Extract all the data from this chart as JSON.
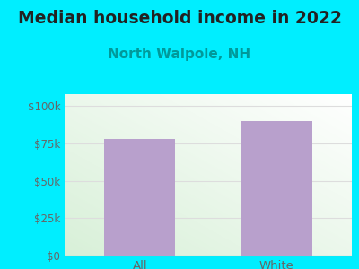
{
  "title": "Median household income in 2022",
  "subtitle": "North Walpole, NH",
  "categories": [
    "All",
    "White"
  ],
  "values": [
    78000,
    90000
  ],
  "bar_color": "#b8a0cc",
  "background_color": "#00eeff",
  "plot_bg_start": "#d8f0d8",
  "plot_bg_end": "#ffffff",
  "title_fontsize": 13.5,
  "title_color": "#222222",
  "subtitle_fontsize": 11,
  "subtitle_color": "#00999a",
  "tick_label_color": "#666666",
  "yticks": [
    0,
    25000,
    50000,
    75000,
    100000
  ],
  "ytick_labels": [
    "$0",
    "$25k",
    "$50k",
    "$75k",
    "$100k"
  ],
  "ylim": [
    0,
    108000
  ],
  "grid_color": "#dddddd",
  "bar_width": 0.52
}
